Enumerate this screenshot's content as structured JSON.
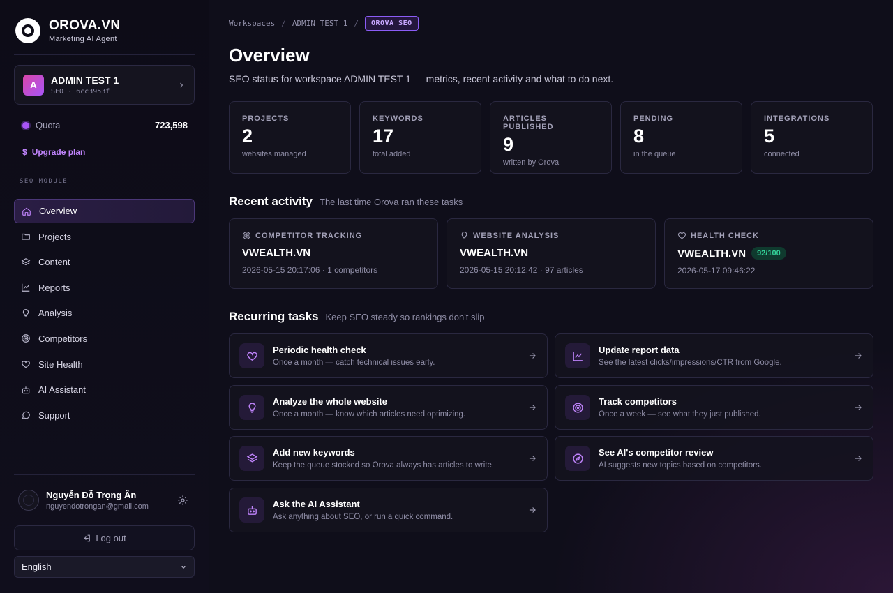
{
  "brand": {
    "name": "OROVA.VN",
    "tagline": "Marketing AI Agent"
  },
  "workspace": {
    "initial": "A",
    "name": "ADMIN TEST 1",
    "meta": "SEO · 6cc3953f"
  },
  "quota": {
    "label": "Quota",
    "value": "723,598"
  },
  "upgrade": {
    "symbol": "$",
    "label": "Upgrade plan"
  },
  "sidebar": {
    "module_label": "SEO MODULE",
    "items": [
      {
        "label": "Overview",
        "icon": "home-icon",
        "active": true
      },
      {
        "label": "Projects",
        "icon": "folder-icon"
      },
      {
        "label": "Content",
        "icon": "layers-icon"
      },
      {
        "label": "Reports",
        "icon": "line-chart-icon"
      },
      {
        "label": "Analysis",
        "icon": "lightbulb-icon"
      },
      {
        "label": "Competitors",
        "icon": "target-icon"
      },
      {
        "label": "Site Health",
        "icon": "heart-icon"
      },
      {
        "label": "AI Assistant",
        "icon": "robot-icon"
      },
      {
        "label": "Support",
        "icon": "chat-icon"
      }
    ]
  },
  "user": {
    "name": "Nguyễn Đỗ Trọng Ân",
    "email": "nguyendotrongan@gmail.com"
  },
  "logout_label": "Log out",
  "language": "English",
  "breadcrumb": {
    "items": [
      "Workspaces",
      "ADMIN TEST 1"
    ],
    "current": "OROVA SEO"
  },
  "page": {
    "title": "Overview",
    "subtitle": "SEO status for workspace ADMIN TEST 1 — metrics, recent activity and what to do next."
  },
  "stats": [
    {
      "label": "PROJECTS",
      "value": "2",
      "sub": "websites managed"
    },
    {
      "label": "KEYWORDS",
      "value": "17",
      "sub": "total added"
    },
    {
      "label": "ARTICLES PUBLISHED",
      "value": "9",
      "sub": "written by Orova"
    },
    {
      "label": "PENDING",
      "value": "8",
      "sub": "in the queue"
    },
    {
      "label": "INTEGRATIONS",
      "value": "5",
      "sub": "connected"
    }
  ],
  "recent_activity": {
    "title": "Recent activity",
    "hint": "The last time Orova ran these tasks",
    "cards": [
      {
        "label": "COMPETITOR TRACKING",
        "icon": "target-icon",
        "site": "VWEALTH.VN",
        "meta": "2026-05-15 20:17:06 · 1 competitors"
      },
      {
        "label": "WEBSITE ANALYSIS",
        "icon": "lightbulb-icon",
        "site": "VWEALTH.VN",
        "meta": "2026-05-15 20:12:42 · 97 articles"
      },
      {
        "label": "HEALTH CHECK",
        "icon": "heart-icon",
        "site": "VWEALTH.VN",
        "score": "92/100",
        "meta": "2026-05-17 09:46:22"
      }
    ]
  },
  "recurring": {
    "title": "Recurring tasks",
    "hint": "Keep SEO steady so rankings don't slip",
    "tasks": [
      {
        "title": "Periodic health check",
        "desc": "Once a month — catch technical issues early.",
        "icon": "heart-icon"
      },
      {
        "title": "Update report data",
        "desc": "See the latest clicks/impressions/CTR from Google.",
        "icon": "line-chart-icon"
      },
      {
        "title": "Analyze the whole website",
        "desc": "Once a month — know which articles need optimizing.",
        "icon": "lightbulb-icon"
      },
      {
        "title": "Track competitors",
        "desc": "Once a week — see what they just published.",
        "icon": "target-icon"
      },
      {
        "title": "Add new keywords",
        "desc": "Keep the queue stocked so Orova always has articles to write.",
        "icon": "layers-icon"
      },
      {
        "title": "See AI's competitor review",
        "desc": "AI suggests new topics based on competitors.",
        "icon": "compass-icon"
      },
      {
        "title": "Ask the AI Assistant",
        "desc": "Ask anything about SEO, or run a quick command.",
        "icon": "robot-icon"
      }
    ]
  },
  "colors": {
    "accent": "#a855f7",
    "accent_light": "#c084fc",
    "score_green": "#34d399",
    "background": "#0f0e1a"
  }
}
